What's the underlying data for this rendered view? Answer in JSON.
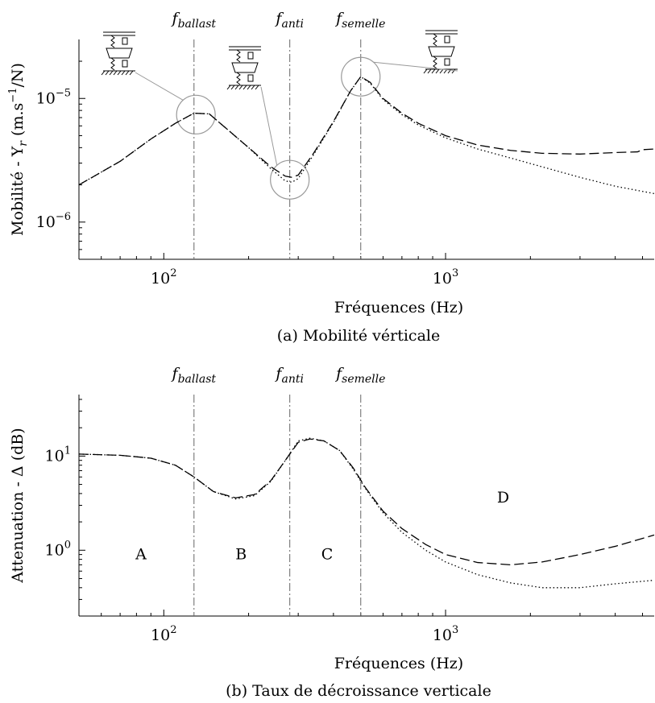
{
  "chart_data": [
    {
      "id": "a",
      "type": "line",
      "caption": "(a) Mobilité vérticale",
      "xlabel": "Fréquences (Hz)",
      "ylabel": {
        "main": "Mobilité - Y",
        "sub": "r",
        "unit_pre": "(m.s",
        "unit_sup": "−1",
        "unit_post": "/N)"
      },
      "x_scale": "log",
      "y_scale": "log",
      "xlim": [
        50,
        5500
      ],
      "ylim": [
        5e-07,
        3e-05
      ],
      "x_ticks": [
        {
          "value": 100,
          "base": "10",
          "exp": "2"
        },
        {
          "value": 1000,
          "base": "10",
          "exp": "3"
        }
      ],
      "y_ticks": [
        {
          "value": 1e-06,
          "base": "10",
          "exp": "−6"
        },
        {
          "value": 1e-05,
          "base": "10",
          "exp": "−5"
        }
      ],
      "markers": [
        {
          "x": 128,
          "label": "f",
          "sub": "ballast"
        },
        {
          "x": 280,
          "label": "f",
          "sub": "anti"
        },
        {
          "x": 500,
          "label": "f",
          "sub": "semelle"
        }
      ],
      "highlights": [
        {
          "x": 130,
          "y": 7.4e-06,
          "icon": "ballast-resonance-sketch-icon"
        },
        {
          "x": 280,
          "y": 2.2e-06,
          "icon": "anti-resonance-sketch-icon"
        },
        {
          "x": 500,
          "y": 1.5e-05,
          "icon": "pad-resonance-sketch-icon"
        }
      ],
      "series": [
        {
          "style": "dashed",
          "points": [
            [
              50,
              2e-06
            ],
            [
              70,
              3.1e-06
            ],
            [
              90,
              4.7e-06
            ],
            [
              110,
              6.3e-06
            ],
            [
              128,
              7.6e-06
            ],
            [
              145,
              7.5e-06
            ],
            [
              170,
              5.5e-06
            ],
            [
              200,
              4e-06
            ],
            [
              240,
              2.8e-06
            ],
            [
              270,
              2.35e-06
            ],
            [
              285,
              2.3e-06
            ],
            [
              300,
              2.4e-06
            ],
            [
              340,
              3.6e-06
            ],
            [
              400,
              6.5e-06
            ],
            [
              460,
              1.15e-05
            ],
            [
              500,
              1.5e-05
            ],
            [
              540,
              1.35e-05
            ],
            [
              600,
              1e-05
            ],
            [
              700,
              7.6e-06
            ],
            [
              800,
              6.3e-06
            ],
            [
              1000,
              5e-06
            ],
            [
              1300,
              4.2e-06
            ],
            [
              1700,
              3.8e-06
            ],
            [
              2200,
              3.6e-06
            ],
            [
              3000,
              3.55e-06
            ],
            [
              4000,
              3.65e-06
            ],
            [
              4800,
              3.7e-06
            ],
            [
              5000,
              3.85e-06
            ],
            [
              5500,
              3.9e-06
            ]
          ]
        },
        {
          "style": "dotted",
          "points": [
            [
              50,
              2e-06
            ],
            [
              70,
              3.1e-06
            ],
            [
              90,
              4.7e-06
            ],
            [
              110,
              6.3e-06
            ],
            [
              128,
              7.6e-06
            ],
            [
              145,
              7.5e-06
            ],
            [
              170,
              5.5e-06
            ],
            [
              200,
              4e-06
            ],
            [
              240,
              2.7e-06
            ],
            [
              270,
              2.15e-06
            ],
            [
              285,
              2.1e-06
            ],
            [
              300,
              2.25e-06
            ],
            [
              340,
              3.5e-06
            ],
            [
              400,
              6.4e-06
            ],
            [
              460,
              1.15e-05
            ],
            [
              500,
              1.5e-05
            ],
            [
              540,
              1.33e-05
            ],
            [
              600,
              9.8e-06
            ],
            [
              700,
              7.4e-06
            ],
            [
              800,
              6.1e-06
            ],
            [
              1000,
              4.8e-06
            ],
            [
              1300,
              3.9e-06
            ],
            [
              1700,
              3.3e-06
            ],
            [
              2200,
              2.8e-06
            ],
            [
              3000,
              2.3e-06
            ],
            [
              4000,
              1.95e-06
            ],
            [
              5500,
              1.7e-06
            ]
          ]
        }
      ]
    },
    {
      "id": "b",
      "type": "line",
      "caption": "(b) Taux de décroissance verticale",
      "xlabel": "Fréquences (Hz)",
      "ylabel": {
        "main": "Attenuation - Δ (dB)"
      },
      "x_scale": "log",
      "y_scale": "log",
      "xlim": [
        50,
        5500
      ],
      "ylim": [
        0.2,
        45
      ],
      "x_ticks": [
        {
          "value": 100,
          "base": "10",
          "exp": "2"
        },
        {
          "value": 1000,
          "base": "10",
          "exp": "3"
        }
      ],
      "y_ticks": [
        {
          "value": 1,
          "base": "10",
          "exp": "0"
        },
        {
          "value": 10,
          "base": "10",
          "exp": "1"
        }
      ],
      "markers": [
        {
          "x": 128,
          "label": "f",
          "sub": "ballast"
        },
        {
          "x": 280,
          "label": "f",
          "sub": "anti"
        },
        {
          "x": 500,
          "label": "f",
          "sub": "semelle"
        }
      ],
      "regions": [
        {
          "label": "A",
          "x": 83,
          "y": 0.8
        },
        {
          "label": "B",
          "x": 188,
          "y": 0.8
        },
        {
          "label": "C",
          "x": 380,
          "y": 0.8
        },
        {
          "label": "D",
          "x": 1600,
          "y": 3.2
        }
      ],
      "series": [
        {
          "style": "dashed",
          "points": [
            [
              50,
              10.5
            ],
            [
              70,
              10.2
            ],
            [
              90,
              9.5
            ],
            [
              110,
              8.0
            ],
            [
              128,
              6.0
            ],
            [
              150,
              4.2
            ],
            [
              180,
              3.6
            ],
            [
              210,
              3.9
            ],
            [
              240,
              5.5
            ],
            [
              270,
              9.0
            ],
            [
              300,
              14.0
            ],
            [
              330,
              15.2
            ],
            [
              370,
              14.5
            ],
            [
              420,
              11.5
            ],
            [
              470,
              7.5
            ],
            [
              520,
              4.6
            ],
            [
              600,
              2.6
            ],
            [
              700,
              1.7
            ],
            [
              850,
              1.15
            ],
            [
              1000,
              0.9
            ],
            [
              1300,
              0.74
            ],
            [
              1700,
              0.7
            ],
            [
              2200,
              0.75
            ],
            [
              3000,
              0.9
            ],
            [
              4000,
              1.1
            ],
            [
              5500,
              1.45
            ]
          ]
        },
        {
          "style": "dotted",
          "points": [
            [
              50,
              10.5
            ],
            [
              70,
              10.2
            ],
            [
              90,
              9.5
            ],
            [
              110,
              8.0
            ],
            [
              128,
              6.0
            ],
            [
              150,
              4.2
            ],
            [
              180,
              3.5
            ],
            [
              210,
              3.8
            ],
            [
              240,
              5.4
            ],
            [
              270,
              9.0
            ],
            [
              300,
              14.5
            ],
            [
              330,
              15.5
            ],
            [
              370,
              14.5
            ],
            [
              420,
              11.5
            ],
            [
              470,
              7.3
            ],
            [
              520,
              4.5
            ],
            [
              600,
              2.5
            ],
            [
              700,
              1.55
            ],
            [
              850,
              1.0
            ],
            [
              1000,
              0.75
            ],
            [
              1300,
              0.55
            ],
            [
              1700,
              0.45
            ],
            [
              2200,
              0.4
            ],
            [
              3000,
              0.4
            ],
            [
              4000,
              0.44
            ],
            [
              5500,
              0.48
            ]
          ]
        }
      ]
    }
  ]
}
